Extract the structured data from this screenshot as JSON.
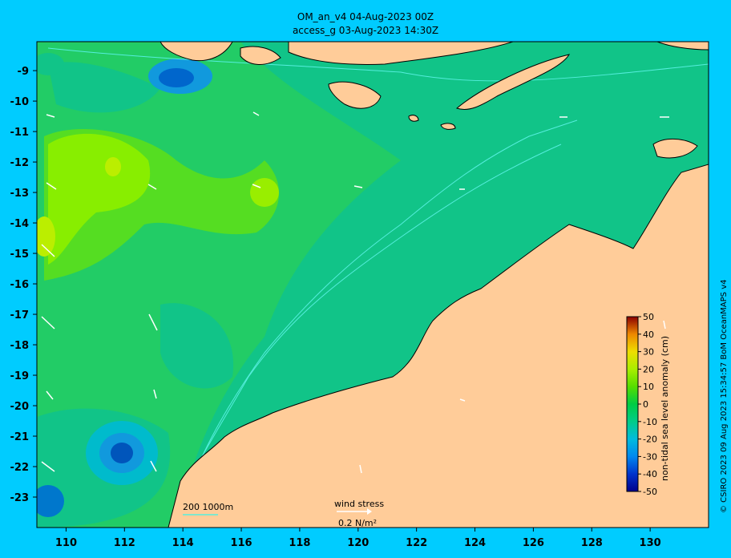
{
  "title": {
    "line1": "OM_an_v4  04-Aug-2023 00Z",
    "line2": "access_g 03-Aug-2023 14:30Z"
  },
  "credit": "© CSIRO 2023   09 Aug 2023 15:34:57 BoM OceanMAPS v4",
  "axes": {
    "x_ticks": [
      "110",
      "112",
      "114",
      "116",
      "118",
      "120",
      "122",
      "124",
      "126",
      "128",
      "130"
    ],
    "y_ticks": [
      "-9",
      "-10",
      "-11",
      "-12",
      "-13",
      "-14",
      "-15",
      "-16",
      "-17",
      "-18",
      "-19",
      "-20",
      "-21",
      "-22",
      "-23"
    ],
    "x_range": [
      109,
      132
    ],
    "y_range": [
      -24,
      -8.05
    ]
  },
  "colorbar": {
    "title": "non-tidal sea level anomaly (cm)",
    "ticks": [
      "50",
      "40",
      "30",
      "20",
      "10",
      "0",
      "-10",
      "-20",
      "-30",
      "-40",
      "-50"
    ],
    "range": [
      -50,
      50
    ],
    "colors": [
      "#00008b",
      "#0033cc",
      "#0088ee",
      "#00bbdd",
      "#00cc88",
      "#00cc44",
      "#55dd00",
      "#aaee00",
      "#eedd00",
      "#ee8800",
      "#cc2200",
      "#8b0000"
    ]
  },
  "legend": {
    "isobaths": "200  1000m",
    "wind_stress_label": "wind stress",
    "wind_stress_value": "0.2 N/m²"
  },
  "colors": {
    "ocean_base": "#22cc66",
    "land": "#ffcc99",
    "isobath": "#55eedd",
    "frame_bg": "#00ccff"
  }
}
